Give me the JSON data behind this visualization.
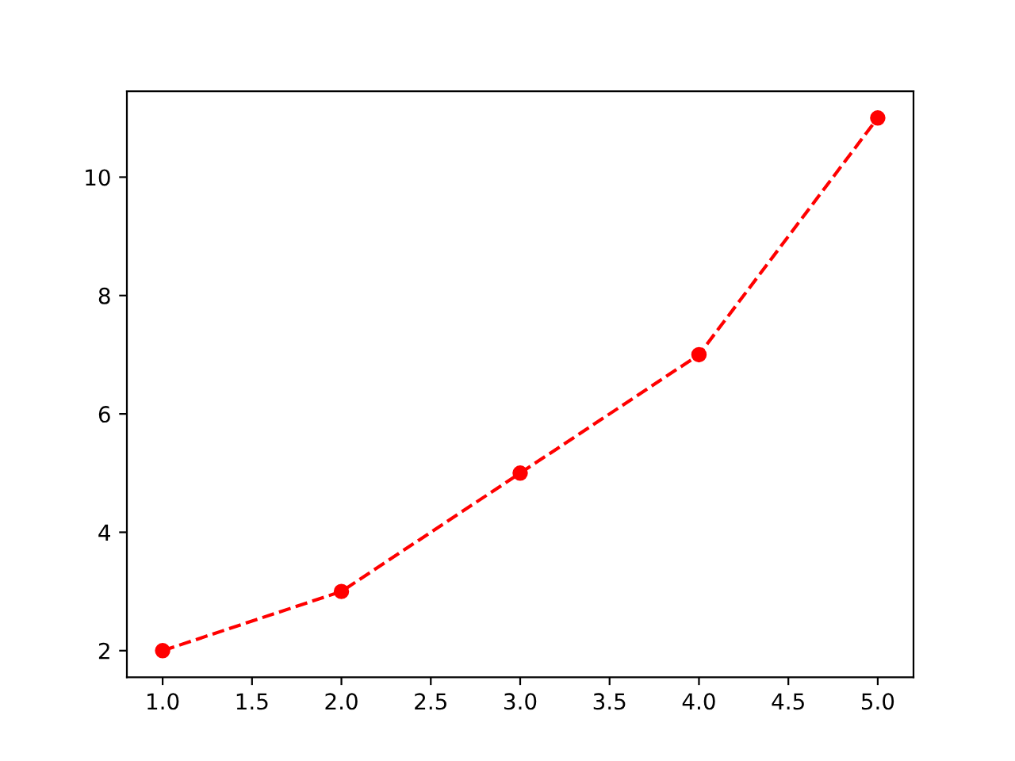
{
  "chart_data": {
    "type": "line",
    "x": [
      1,
      2,
      3,
      4,
      5
    ],
    "series": [
      {
        "color": "#ff0000",
        "values": [
          2,
          3,
          5,
          7,
          11
        ]
      }
    ],
    "marker": "circle",
    "line_style": "dashed",
    "grid": false,
    "xlim": [
      0.8,
      5.2
    ],
    "ylim": [
      1.55,
      11.45
    ],
    "xticks": [
      {
        "value": 1,
        "label": "1.0"
      },
      1.5,
      {
        "value": 2,
        "label": "2.0"
      },
      2.5,
      {
        "value": 3,
        "label": "3.0"
      },
      3.5,
      {
        "value": 4,
        "label": "4.0"
      },
      4.5,
      {
        "value": 5,
        "label": "5.0"
      }
    ],
    "yticks": [
      2,
      4,
      6,
      8,
      10
    ]
  }
}
